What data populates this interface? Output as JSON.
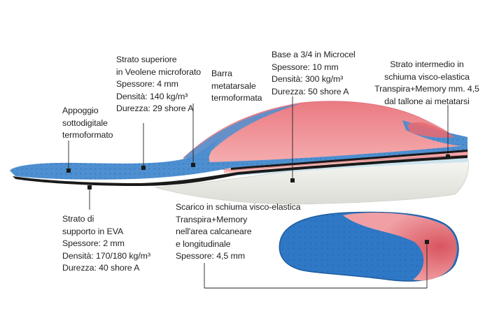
{
  "colors": {
    "foam_white": "#eeeeea",
    "top_blue": "#4d8fd0",
    "top_blue_dark": "#2f6fb4",
    "pink": "#e8707a",
    "pink_light": "#f3a6a8",
    "black_layer": "#1a1a1a",
    "leader_line": "#222222",
    "marker_dot": "#1a1a1a"
  },
  "labels": {
    "appoggio": [
      "Appoggio",
      "sottodigitale",
      "termoformato"
    ],
    "strato_superiore": [
      "Strato superiore",
      "in Veolene microforato",
      "Spessore: 4 mm",
      "Densità: 140 kg/m³",
      "Durezza: 29 shore A"
    ],
    "barra": [
      "Barra",
      "metatarsale",
      "termoformata"
    ],
    "base": [
      "Base a 3/4 in Microcel",
      "Spessore: 10 mm",
      "Densità: 300 kg/m³",
      "Durezza: 50 shore A"
    ],
    "strato_intermedio": [
      "Strato intermedio in",
      "schiuma visco-elastica",
      "Transpira+Memory mm. 4,5",
      "dal tallone ai metatarsi"
    ],
    "strato_supporto": [
      "Strato di",
      "supporto in EVA",
      "Spessore: 2 mm",
      "Densità: 170/180 kg/m³",
      "Durezza: 40 shore A"
    ],
    "scarico": [
      "Scarico in schiuma visco-elastica",
      "Transpira+Memory",
      "nell'area calcaneare",
      "e longitudinale",
      "Spessore: 4,5 mm"
    ]
  }
}
